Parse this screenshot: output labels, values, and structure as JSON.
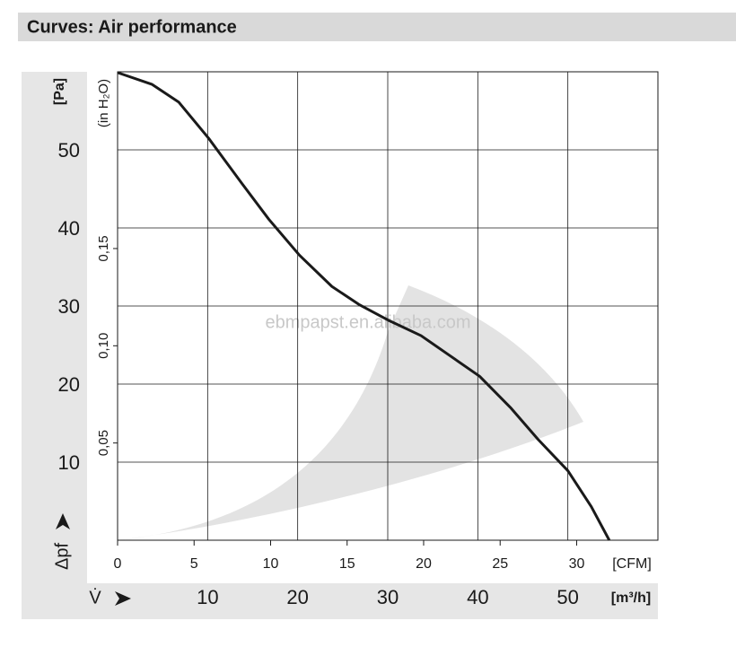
{
  "chart_data": {
    "type": "line",
    "title": "Curves: Air performance",
    "y_label": "[Pa]",
    "y_symbol": "Δpf",
    "y2_label": "(in H₂O)",
    "x_label": "[m³/h]",
    "x_symbol": "V̇",
    "x2_label": "[CFM]",
    "watermark": "ebmpapst.en.alibaba.com",
    "x": [
      0,
      3.8,
      6.8,
      10.1,
      13.8,
      16.8,
      20.2,
      23.8,
      26.8,
      30.2,
      33.7,
      36.7,
      40.2,
      43.7,
      46.7,
      50.0,
      52.6,
      54.6
    ],
    "series": [
      {
        "color": "#1a1a1a",
        "values": [
          59.9,
          58.4,
          56.1,
          51.5,
          45.7,
          41.1,
          36.5,
          32.5,
          30.2,
          28.1,
          26.2,
          23.8,
          21.0,
          16.9,
          12.9,
          8.9,
          4.3,
          0
        ]
      }
    ],
    "xlim": [
      0,
      60
    ],
    "xticks": [
      10,
      20,
      30,
      40,
      50
    ],
    "x2lim": [
      0,
      35.31
    ],
    "x2ticks": [
      0,
      5,
      10,
      15,
      20,
      25,
      30
    ],
    "ylim": [
      0,
      60
    ],
    "yticks": [
      10,
      20,
      30,
      40,
      50
    ],
    "y2lim": [
      0,
      0.2409
    ],
    "y2ticks": [
      {
        "value": 0.05,
        "label": "0,05"
      },
      {
        "value": 0.1,
        "label": "0,10"
      },
      {
        "value": 0.15,
        "label": "0,15"
      }
    ],
    "grid": true
  }
}
